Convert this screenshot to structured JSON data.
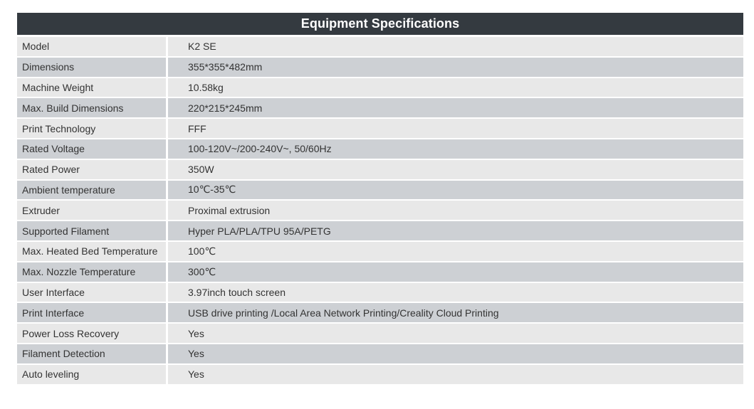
{
  "table": {
    "title": "Equipment Specifications",
    "rows": [
      {
        "label": "Model",
        "value": "K2 SE"
      },
      {
        "label": "Dimensions",
        "value": "355*355*482mm"
      },
      {
        "label": "Machine Weight",
        "value": "10.58kg"
      },
      {
        "label": "Max. Build Dimensions",
        "value": "220*215*245mm"
      },
      {
        "label": "Print Technology",
        "value": "FFF"
      },
      {
        "label": "Rated Voltage",
        "value": "100-120V~/200-240V~,  50/60Hz"
      },
      {
        "label": "Rated Power",
        "value": "350W"
      },
      {
        "label": "Ambient temperature",
        "value": "10℃-35℃"
      },
      {
        "label": "Extruder",
        "value": "Proximal extrusion"
      },
      {
        "label": "Supported Filament",
        "value": "Hyper PLA/PLA/TPU 95A/PETG"
      },
      {
        "label": "Max. Heated Bed Temperature",
        "value": "100℃"
      },
      {
        "label": "Max. Nozzle Temperature",
        "value": "300℃"
      },
      {
        "label": "User Interface",
        "value": "3.97inch touch screen"
      },
      {
        "label": "Print Interface",
        "value": "USB drive printing /Local Area Network Printing/Creality Cloud Printing"
      },
      {
        "label": "Power Loss Recovery",
        "value": "Yes"
      },
      {
        "label": "Filament Detection",
        "value": "Yes"
      },
      {
        "label": "Auto leveling",
        "value": "Yes"
      }
    ]
  },
  "colors": {
    "header_bg": "#343a40",
    "row_light": "#e8e8e8",
    "row_dark": "#cdd0d4",
    "text": "#333333"
  }
}
